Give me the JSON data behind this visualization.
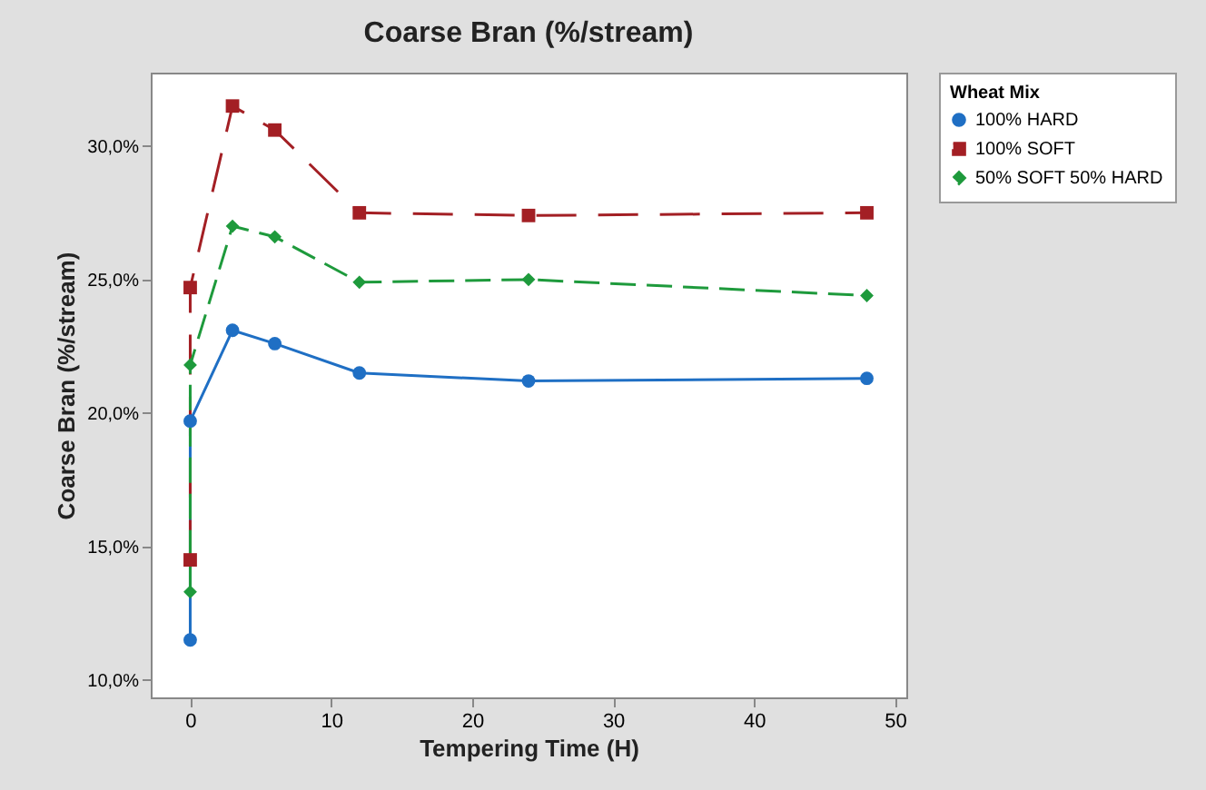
{
  "chart_data": {
    "type": "line",
    "title": "Coarse Bran (%/stream)",
    "xlabel": "Tempering Time (H)",
    "ylabel": "Coarse Bran (%/stream)",
    "legend_title": "Wheat Mix",
    "x": [
      0,
      0,
      3,
      6,
      12,
      24,
      48
    ],
    "series": [
      {
        "name": "100% HARD",
        "color": "#1f6fc4",
        "marker": "circle",
        "line_style": "solid",
        "values": [
          11.5,
          19.7,
          23.1,
          22.6,
          21.5,
          21.2,
          21.3
        ]
      },
      {
        "name": "100% SOFT",
        "color": "#a31f24",
        "marker": "square",
        "line_style": "dashed",
        "values": [
          14.5,
          24.7,
          31.5,
          30.6,
          27.5,
          27.4,
          27.5
        ]
      },
      {
        "name": "50% SOFT 50% HARD",
        "color": "#1e9a3c",
        "marker": "diamond",
        "line_style": "dashed",
        "values": [
          13.3,
          21.8,
          27.0,
          26.6,
          24.9,
          25.0,
          24.4
        ]
      }
    ],
    "xlim": [
      -2.8,
      50.8
    ],
    "xticks": [
      0,
      10,
      20,
      30,
      40,
      50
    ],
    "ylim": [
      9.35,
      32.75
    ],
    "yticks": [
      {
        "value": 10,
        "label": "10,0%"
      },
      {
        "value": 15,
        "label": "15,0%"
      },
      {
        "value": 20,
        "label": "20,0%"
      },
      {
        "value": 25,
        "label": "25,0%"
      },
      {
        "value": 30,
        "label": "30,0%"
      }
    ],
    "grid": false,
    "legend": "top right"
  }
}
